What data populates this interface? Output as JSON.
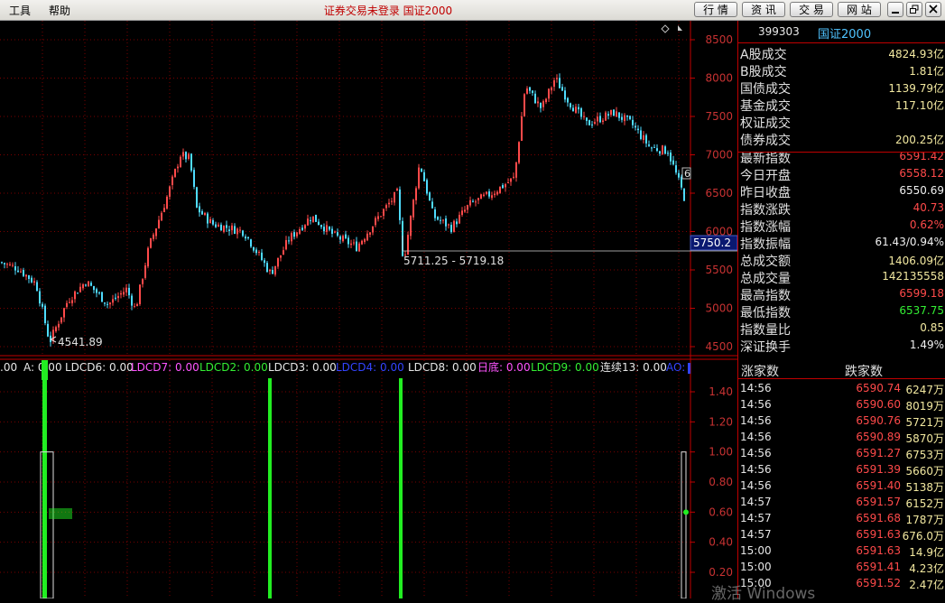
{
  "menu": {
    "tools": "工具",
    "help": "帮助"
  },
  "window_title": "证券交易未登录 国证2000",
  "nav_buttons": [
    "行 情",
    "资 讯",
    "交 易",
    "网 站"
  ],
  "colors": {
    "up": "#ff4a4a",
    "down": "#4fdcff",
    "grid": "#7a0000",
    "axis": "#c00000",
    "bar": "#22ee22"
  },
  "price_axis": {
    "ticks": [
      "8500",
      "8000",
      "7500",
      "7000",
      "6500",
      "6000",
      "5500",
      "5000",
      "4500"
    ],
    "values": [
      8500,
      8000,
      7500,
      7000,
      6500,
      6000,
      5500,
      5000,
      4500
    ]
  },
  "markers": {
    "high_label": "6",
    "low_label": "4541.89",
    "range_label": "5711.25 - 5719.18",
    "crosshair_price": "5750.2"
  },
  "indicator_legend": [
    {
      "text": ".00",
      "color": "#e6e6e6"
    },
    {
      "text": "A: 0.00",
      "color": "#e6e6e6"
    },
    {
      "text": "LDCD6: 0.00",
      "color": "#e6e6e6"
    },
    {
      "text": "LDCD7: 0.00",
      "color": "#ff55ff"
    },
    {
      "text": "LDCD2: 0.00",
      "color": "#33ee33"
    },
    {
      "text": "LDCD3: 0.00",
      "color": "#e6e6e6"
    },
    {
      "text": "LDCD4: 0.00",
      "color": "#3344ff"
    },
    {
      "text": "LDCD8: 0.00",
      "color": "#e6e6e6"
    },
    {
      "text": "日底: 0.00",
      "color": "#ff55ff"
    },
    {
      "text": "LDCD9: 0.00",
      "color": "#33ee33"
    },
    {
      "text": "连续13: 0.00",
      "color": "#e6e6e6"
    },
    {
      "text": "AO: ",
      "color": "#3344ff"
    }
  ],
  "indicator_axis": {
    "ticks": [
      "1.40",
      "1.20",
      "1.00",
      "0.80",
      "0.60",
      "0.40",
      "0.20"
    ],
    "values": [
      1.4,
      1.2,
      1.0,
      0.8,
      0.6,
      0.4,
      0.2
    ]
  },
  "right_panel": {
    "code": "399303",
    "name": "国证2000",
    "stats": [
      {
        "label": "A股成交",
        "value": "4824.93亿",
        "color": "#f2e8a0"
      },
      {
        "label": "B股成交",
        "value": "1.81亿",
        "color": "#f2e8a0"
      },
      {
        "label": "国债成交",
        "value": "1139.79亿",
        "color": "#f2e8a0"
      },
      {
        "label": "基金成交",
        "value": "117.10亿",
        "color": "#f2e8a0"
      },
      {
        "label": "权证成交",
        "value": "",
        "color": "#f2e8a0"
      },
      {
        "label": "债券成交",
        "value": "200.25亿",
        "color": "#f2e8a0"
      },
      {
        "label": "最新指数",
        "value": "6591.42",
        "color": "#ff4a4a"
      },
      {
        "label": "今日开盘",
        "value": "6558.12",
        "color": "#ff4a4a"
      },
      {
        "label": "昨日收盘",
        "value": "6550.69",
        "color": "#f0f0f0"
      },
      {
        "label": "指数涨跌",
        "value": "40.73",
        "color": "#ff4a4a"
      },
      {
        "label": "指数涨幅",
        "value": "0.62%",
        "color": "#ff4a4a"
      },
      {
        "label": "指数振幅",
        "value": "61.43/0.94%",
        "color": "#f0f0f0"
      },
      {
        "label": "总成交额",
        "value": "1406.09亿",
        "color": "#f2e8a0"
      },
      {
        "label": "总成交量",
        "value": "142135558",
        "color": "#f2e8a0"
      },
      {
        "label": "最高指数",
        "value": "6599.18",
        "color": "#ff4a4a"
      },
      {
        "label": "最低指数",
        "value": "6537.75",
        "color": "#33ee33"
      },
      {
        "label": "指数量比",
        "value": "0.85",
        "color": "#f2e8a0"
      },
      {
        "label": "深证换手",
        "value": "1.49%",
        "color": "#f0f0f0"
      }
    ],
    "tick_header": {
      "up_count": "涨家数",
      "down_count": "跌家数"
    },
    "ticks": [
      {
        "time": "14:56",
        "price": "6590.74",
        "volume": "6247万"
      },
      {
        "time": "14:56",
        "price": "6590.60",
        "volume": "8019万"
      },
      {
        "time": "14:56",
        "price": "6590.76",
        "volume": "5721万"
      },
      {
        "time": "14:56",
        "price": "6590.89",
        "volume": "5870万"
      },
      {
        "time": "14:56",
        "price": "6591.27",
        "volume": "6753万"
      },
      {
        "time": "14:56",
        "price": "6591.39",
        "volume": "5660万"
      },
      {
        "time": "14:56",
        "price": "6591.40",
        "volume": "5138万"
      },
      {
        "time": "14:57",
        "price": "6591.57",
        "volume": "6152万"
      },
      {
        "time": "14:57",
        "price": "6591.68",
        "volume": "1787万"
      },
      {
        "time": "14:57",
        "price": "6591.63",
        "volume": "676.0万"
      },
      {
        "time": "15:00",
        "price": "6591.63",
        "volume": "14.9亿"
      },
      {
        "time": "15:00",
        "price": "6591.41",
        "volume": "4.23亿"
      },
      {
        "time": "15:00",
        "price": "6591.52",
        "volume": "2.47亿"
      }
    ]
  },
  "watermark": "激活 Windows"
}
